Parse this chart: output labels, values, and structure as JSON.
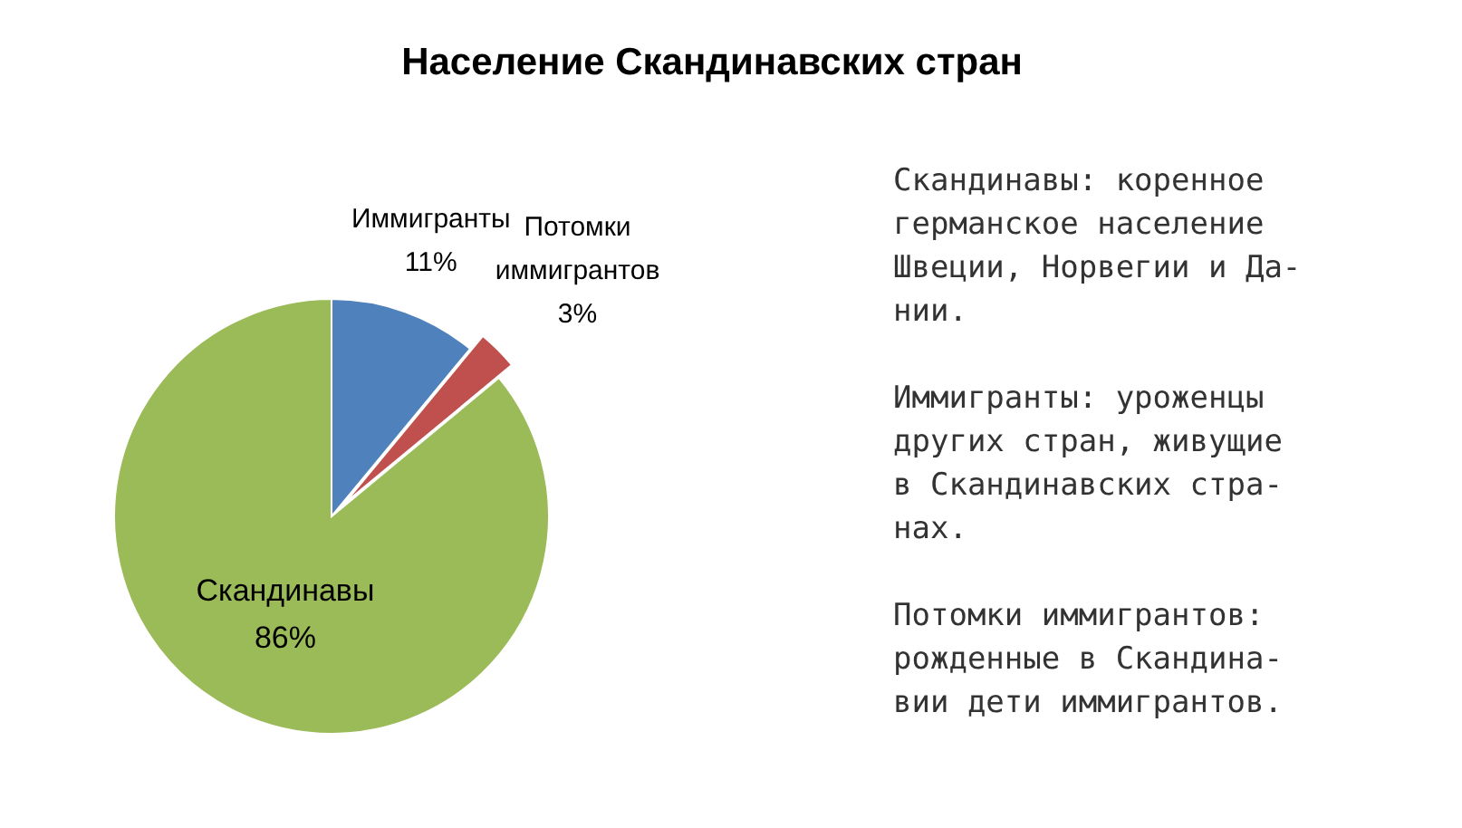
{
  "chart_data": {
    "type": "pie",
    "title": "Население Скандинавских стран",
    "categories": [
      "Иммигранты",
      "Потомки иммигрантов",
      "Скандинавы"
    ],
    "values": [
      11,
      3,
      86
    ],
    "colors": [
      "#4f81bd",
      "#c0504d",
      "#9bbb59"
    ],
    "value_labels": [
      "11%",
      "3%",
      "86%"
    ],
    "annotations": [
      "Скандинавы: коренное\nгерманское население\nШвеции, Норвегии и Да-\nнии.",
      "Иммигранты: уроженцы\nдругих стран, живущие\nв Скандинавских стра-\nнах.",
      "Потомки иммигрантов:\nрожденные в Скандина-\nвии дети иммигрантов."
    ]
  }
}
